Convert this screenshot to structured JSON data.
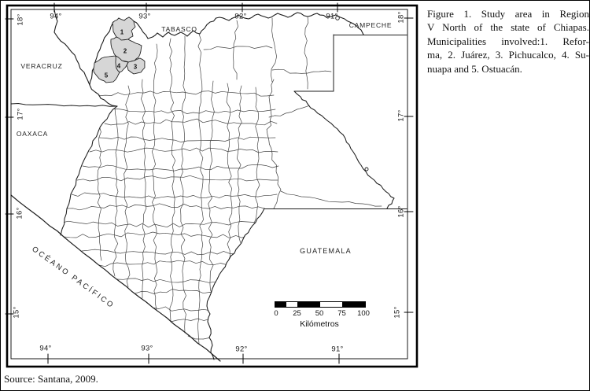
{
  "figure": {
    "caption_lines": [
      "Figure 1. Study area in Region",
      "V North of the state of Chiapas.",
      "Municipalities involved:1. Refor-",
      "ma, 2. Juárez, 3. Pichucalco, 4. Su-",
      "nuapa and 5. Ostuacán."
    ],
    "source": "Source: Santana, 2009."
  },
  "map": {
    "neighbor_labels": {
      "veracruz": "VERACRUZ",
      "tabasco": "TABASCO",
      "campeche": "CAMPECHE",
      "oaxaca": "OAXACA",
      "guatemala": "GUATEMALA",
      "pacific_ocean": "OCÉANO PACÍFICO"
    },
    "municipality_numbers": [
      "1",
      "2",
      "3",
      "4",
      "5"
    ],
    "longitude_labels": [
      "94°",
      "93°",
      "92°",
      "91°"
    ],
    "latitude_labels": [
      "18°",
      "17°",
      "16°",
      "15°"
    ],
    "scale_bar": {
      "tick_labels": [
        "0",
        "25",
        "50",
        "75",
        "100"
      ],
      "unit_label": "Kilómetros"
    },
    "colors": {
      "highlight_fill": "#d6d6d6",
      "border_line": "#1c1c1c",
      "mesh_line": "#454545",
      "frame": "#000000"
    }
  }
}
